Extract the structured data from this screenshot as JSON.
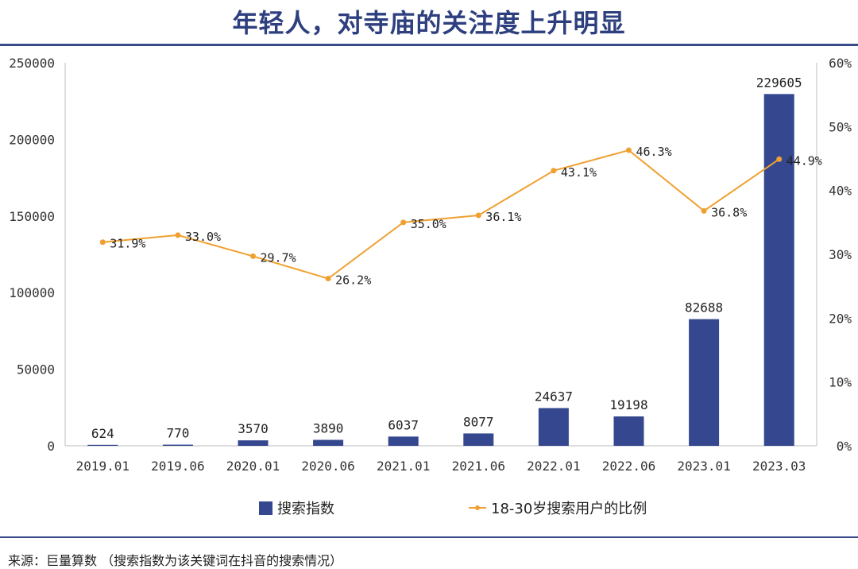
{
  "title": "年轻人，对寺庙的关注度上升明显",
  "source": "来源：巨量算数  （搜索指数为该关键词在抖音的搜索情况）",
  "colors": {
    "bar": "#34478F",
    "line": "#F0A030",
    "title": "#2E3F7F",
    "axis": "#BFBFBF"
  },
  "chart_data": {
    "type": "bar+line",
    "categories": [
      "2019.01",
      "2019.06",
      "2020.01",
      "2020.06",
      "2021.01",
      "2021.06",
      "2022.01",
      "2022.06",
      "2023.01",
      "2023.03"
    ],
    "series": [
      {
        "name": "搜索指数",
        "type": "bar",
        "axis": "left",
        "values": [
          624,
          770,
          3570,
          3890,
          6037,
          8077,
          24637,
          19198,
          82688,
          229605
        ],
        "labels": [
          "624",
          "770",
          "3570",
          "3890",
          "6037",
          "8077",
          "24637",
          "19198",
          "82688",
          "229605"
        ]
      },
      {
        "name": "18-30岁搜索用户的比例",
        "type": "line",
        "axis": "right",
        "values": [
          31.9,
          33.0,
          29.7,
          26.2,
          35.0,
          36.1,
          43.1,
          46.3,
          36.8,
          44.9
        ],
        "labels": [
          "31.9%",
          "33.0%",
          "29.7%",
          "26.2%",
          "35.0%",
          "36.1%",
          "43.1%",
          "46.3%",
          "36.8%",
          "44.9%"
        ]
      }
    ],
    "y_left": {
      "range": [
        0,
        250000
      ],
      "ticks": [
        "0",
        "50000",
        "100000",
        "150000",
        "200000",
        "250000"
      ]
    },
    "y_right": {
      "range": [
        0,
        60
      ],
      "ticks": [
        "0%",
        "10%",
        "20%",
        "30%",
        "40%",
        "50%",
        "60%"
      ]
    },
    "legend_position": "bottom",
    "grid": false
  }
}
